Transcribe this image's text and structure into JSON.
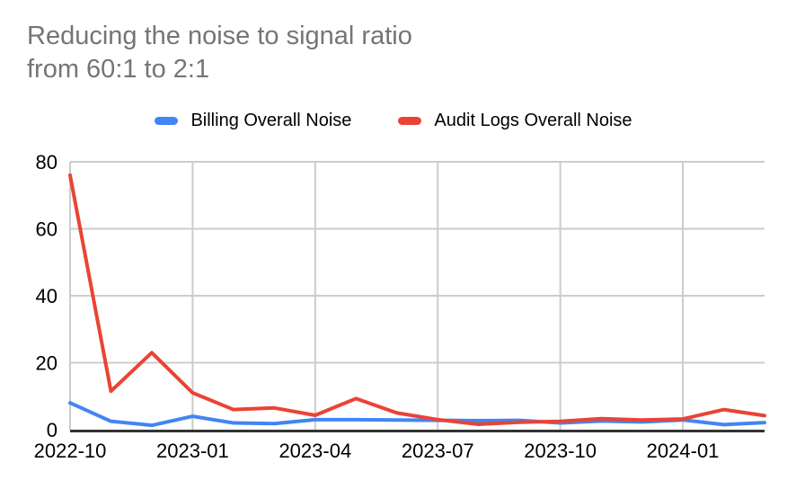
{
  "header": {
    "title_lines": [
      "Reducing the noise to signal ratio",
      "from 60:1 to 2:1"
    ]
  },
  "legend": {
    "items": [
      {
        "label": "Billing Overall Noise",
        "color": "#4285f4"
      },
      {
        "label": "Audit Logs Overall Noise",
        "color": "#ea4335"
      }
    ]
  },
  "chart_data": {
    "type": "line",
    "title": "Reducing the noise to signal ratio from 60:1 to 2:1",
    "categories": [
      "2022-10",
      "2022-11",
      "2022-12",
      "2023-01",
      "2023-02",
      "2023-03",
      "2023-04",
      "2023-05",
      "2023-06",
      "2023-07",
      "2023-08",
      "2023-09",
      "2023-10",
      "2023-11",
      "2023-12",
      "2024-01",
      "2024-02",
      "2024-03"
    ],
    "x_tick_labels": [
      "2022-10",
      "2023-01",
      "2023-04",
      "2023-07",
      "2023-10",
      "2024-01"
    ],
    "x_tick_every": 3,
    "series": [
      {
        "name": "Billing Overall Noise",
        "color": "#4285f4",
        "values": [
          8,
          2.5,
          1.3,
          4,
          2,
          1.8,
          3,
          3,
          2.9,
          2.8,
          2.7,
          2.8,
          2,
          2.6,
          2.3,
          2.9,
          1.5,
          2.1
        ]
      },
      {
        "name": "Audit Logs Overall Noise",
        "color": "#ea4335",
        "values": [
          76,
          11.5,
          23,
          11,
          6,
          6.5,
          4.3,
          9.3,
          5,
          3,
          1.6,
          2.2,
          2.5,
          3.3,
          2.9,
          3.2,
          6,
          4.2
        ]
      }
    ],
    "ylim": [
      0,
      80
    ],
    "y_ticks": [
      0,
      20,
      40,
      60,
      80
    ],
    "grid": true,
    "legend_position": "top",
    "xlabel": "",
    "ylabel": "",
    "colors": {
      "grid": "#cccccc",
      "axis": "#333333",
      "tick_label": "#000000",
      "title": "#757575"
    }
  }
}
